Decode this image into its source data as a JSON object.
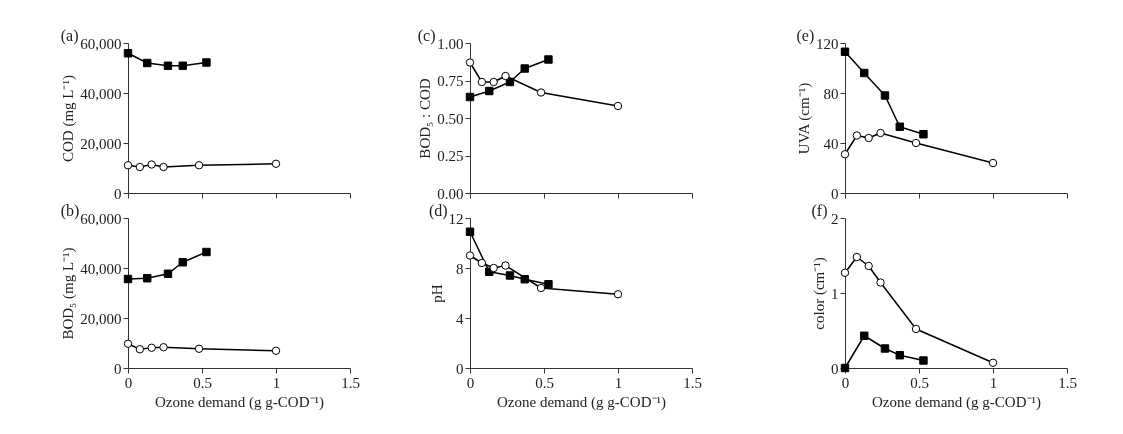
{
  "chart_data": [
    {
      "type": "line",
      "title": "(a)",
      "ylabel": "COD (mg L⁻¹)",
      "xlim": [
        0,
        1.5
      ],
      "xticks": [
        0,
        0.5,
        1,
        1.5
      ],
      "tick_labels": "y",
      "ylim": [
        0,
        60000
      ],
      "yticks": [
        0,
        {
          "value": 20000,
          "label": "20,000"
        },
        {
          "value": 40000,
          "label": "40,000"
        },
        {
          "value": 60000,
          "label": "60,000"
        }
      ],
      "series": [
        {
          "color": "#000000",
          "marker": "square",
          "x": [
            0,
            0.13,
            0.27,
            0.37,
            0.53
          ],
          "values": [
            55900,
            52000,
            50900,
            50900,
            52200
          ]
        },
        {
          "color": "#000000",
          "marker": "circle",
          "x": [
            0,
            0.08,
            0.16,
            0.24,
            0.48,
            1.0
          ],
          "values": [
            11100,
            10400,
            11400,
            10400,
            11100,
            11700
          ]
        }
      ]
    },
    {
      "type": "line",
      "title": "(c)",
      "ylabel": "BOD₅ : COD",
      "xlim": [
        0,
        1.5
      ],
      "xticks": [
        0,
        0.5,
        1,
        1.5
      ],
      "tick_labels": "y",
      "ylim": [
        0,
        1
      ],
      "yticks": [
        {
          "value": 0,
          "label": "0.00"
        },
        0.25,
        {
          "value": 0.5,
          "label": "0.50"
        },
        0.75,
        {
          "value": 1,
          "label": "1.00"
        }
      ],
      "series": [
        {
          "color": "#000000",
          "marker": "square",
          "x": [
            0,
            0.13,
            0.27,
            0.37,
            0.53
          ],
          "values": [
            0.64,
            0.68,
            0.74,
            0.83,
            0.89
          ]
        },
        {
          "color": "#000000",
          "marker": "circle",
          "x": [
            0,
            0.08,
            0.16,
            0.24,
            0.48,
            1.0
          ],
          "values": [
            0.87,
            0.74,
            0.74,
            0.78,
            0.67,
            0.58
          ]
        }
      ]
    },
    {
      "type": "line",
      "title": "(e)",
      "ylabel": "UVA (cm⁻¹)",
      "xlim": [
        0,
        1.5
      ],
      "xticks": [
        0,
        0.5,
        1,
        1.5
      ],
      "tick_labels": "y",
      "ylim": [
        0,
        120
      ],
      "yticks": [
        0,
        40,
        80,
        120
      ],
      "series": [
        {
          "color": "#000000",
          "marker": "square",
          "x": [
            0,
            0.13,
            0.27,
            0.37,
            0.53
          ],
          "values": [
            113,
            96,
            78,
            53,
            47
          ]
        },
        {
          "color": "#000000",
          "marker": "circle",
          "x": [
            0,
            0.08,
            0.16,
            0.24,
            0.48,
            1.0
          ],
          "values": [
            31,
            46,
            44,
            48,
            40,
            24
          ]
        }
      ]
    },
    {
      "type": "line",
      "title": "(b)",
      "xlabel": "Ozone demand (g g-COD⁻¹)",
      "ylabel": "BOD₅ (mg L⁻¹)",
      "xlim": [
        0,
        1.5
      ],
      "xticks": [
        0,
        0.5,
        1,
        1.5
      ],
      "ylim": [
        0,
        60000
      ],
      "yticks": [
        0,
        {
          "value": 20000,
          "label": "20,000"
        },
        {
          "value": 40000,
          "label": "40,000"
        },
        {
          "value": 60000,
          "label": "60,000"
        }
      ],
      "series": [
        {
          "color": "#000000",
          "marker": "square",
          "x": [
            0,
            0.13,
            0.27,
            0.37,
            0.53
          ],
          "values": [
            35600,
            35900,
            37700,
            42300,
            46400
          ]
        },
        {
          "color": "#000000",
          "marker": "circle",
          "x": [
            0,
            0.08,
            0.16,
            0.24,
            0.48,
            1.0
          ],
          "values": [
            9700,
            7500,
            8100,
            8300,
            7700,
            6900
          ]
        }
      ]
    },
    {
      "type": "line",
      "title": "(d)",
      "xlabel": "Ozone demand (g g-COD⁻¹)",
      "ylabel": "pH",
      "xlim": [
        0,
        1.5
      ],
      "xticks": [
        0,
        0.5,
        1,
        1.5
      ],
      "ylim": [
        0,
        12
      ],
      "yticks": [
        0,
        4,
        8,
        12
      ],
      "series": [
        {
          "color": "#000000",
          "marker": "square",
          "x": [
            0,
            0.13,
            0.27,
            0.37,
            0.53
          ],
          "values": [
            10.9,
            7.7,
            7.4,
            7.1,
            6.7
          ]
        },
        {
          "color": "#000000",
          "marker": "circle",
          "x": [
            0,
            0.08,
            0.16,
            0.24,
            0.48,
            1.0
          ],
          "values": [
            9.0,
            8.4,
            8.0,
            8.2,
            6.4,
            5.9
          ]
        }
      ]
    },
    {
      "type": "line",
      "title": "(f)",
      "xlabel": "Ozone demand (g g-COD⁻¹)",
      "ylabel": "color (cm⁻¹)",
      "xlim": [
        0,
        1.5
      ],
      "xticks": [
        0,
        0.5,
        1,
        1.5
      ],
      "ylim": [
        0,
        2
      ],
      "yticks": [
        0,
        1,
        2
      ],
      "series": [
        {
          "color": "#000000",
          "marker": "square",
          "x": [
            0,
            0.13,
            0.27,
            0.37,
            0.53
          ],
          "values": [
            0,
            0.43,
            0.26,
            0.17,
            0.1
          ]
        },
        {
          "color": "#000000",
          "marker": "circle",
          "x": [
            0,
            0.08,
            0.16,
            0.24,
            0.48,
            1.0
          ],
          "values": [
            1.27,
            1.48,
            1.36,
            1.14,
            0.52,
            0.07
          ]
        }
      ]
    }
  ]
}
